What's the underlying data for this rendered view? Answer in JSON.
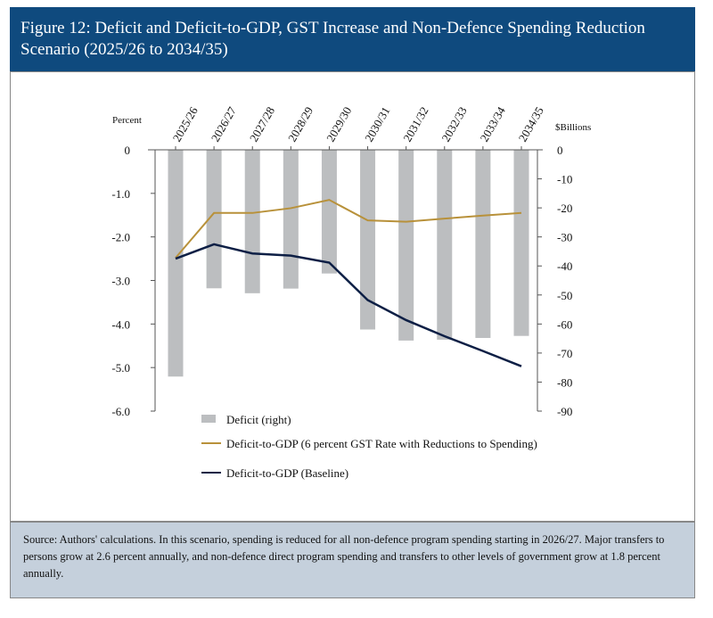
{
  "header": {
    "title": "Figure 12: Deficit and Deficit-to-GDP, GST Increase and Non-Defence Spending Reduction Scenario (2025/26 to 2034/35)"
  },
  "source": {
    "text": "Source: Authors' calculations. In this scenario, spending is reduced for all non-defence program spending starting in 2026/27. Major transfers to persons grow at 2.6 percent annually, and non-defence direct program spending and transfers to other levels of government grow at 1.8 percent annually."
  },
  "chart_data": {
    "type": "bar+line",
    "categories": [
      "2025/26",
      "2026/27",
      "2027/28",
      "2028/29",
      "2029/30",
      "2030/31",
      "2031/32",
      "2032/33",
      "2033/34",
      "2034/35"
    ],
    "left_axis": {
      "label": "Percent",
      "range": [
        -6,
        0
      ],
      "ticks": [
        "0",
        "-1.0",
        "-2.0",
        "-3.0",
        "-4.0",
        "-5.0",
        "-6.0"
      ]
    },
    "right_axis": {
      "label": "$Billions",
      "range": [
        -90,
        0
      ],
      "ticks": [
        "0",
        "-10",
        "-20",
        "-30",
        "-40",
        "-50",
        "-60",
        "-70",
        "-80",
        "-90"
      ]
    },
    "series": [
      {
        "name": "Deficit (right)",
        "type": "bar",
        "axis": "right",
        "color": "#bcbec0",
        "values": [
          -78.1,
          -47.7,
          -49.4,
          -47.8,
          -42.6,
          -61.9,
          -65.7,
          -65.4,
          -64.8,
          -64.1
        ]
      },
      {
        "name": "Deficit-to-GDP (6 percent GST Rate with Reductions to Spending)",
        "type": "line",
        "axis": "left",
        "color": "#b8913a",
        "values": [
          -2.48,
          -1.45,
          -1.45,
          -1.34,
          -1.15,
          -1.62,
          -1.65,
          -1.58,
          -1.51,
          -1.45
        ]
      },
      {
        "name": "Deficit-to-GDP (Baseline)",
        "type": "line",
        "axis": "left",
        "color": "#0d1f45",
        "values": [
          -2.5,
          -2.17,
          -2.38,
          -2.43,
          -2.59,
          -3.45,
          -3.91,
          -4.28,
          -4.62,
          -4.97
        ]
      }
    ],
    "legend": "bottom-center"
  }
}
